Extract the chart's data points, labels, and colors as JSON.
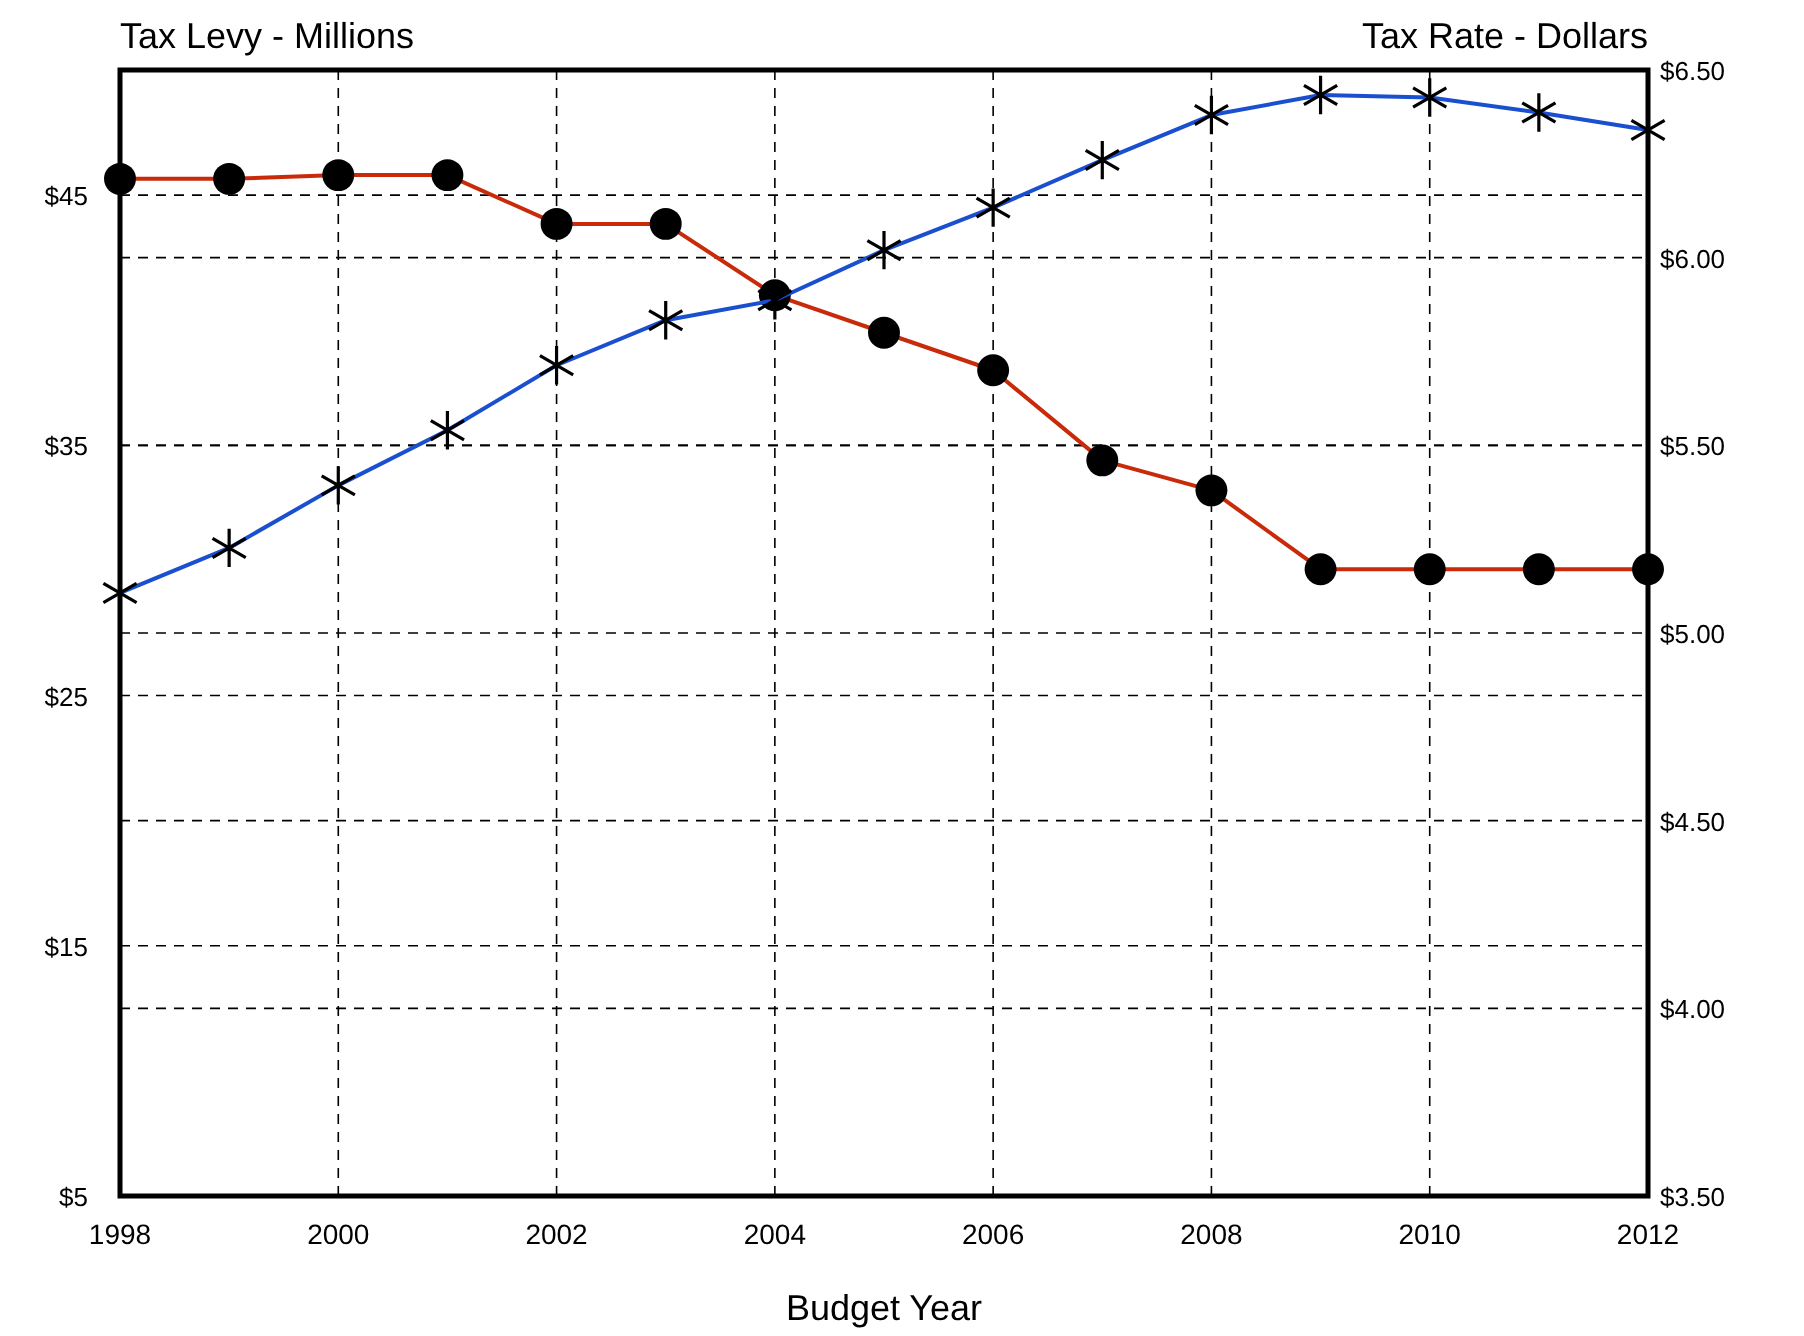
{
  "chart_data": {
    "type": "line",
    "xlabel": "Budget Year",
    "ylabel": "Tax Levy - Millions",
    "y2label": "Tax Rate - Dollars",
    "x": [
      1998,
      1999,
      2000,
      2001,
      2002,
      2003,
      2004,
      2005,
      2006,
      2007,
      2008,
      2009,
      2010,
      2011,
      2012
    ],
    "series": [
      {
        "color": "#1a4fd0",
        "marker": "cross",
        "values": [
          29.1,
          30.9,
          33.4,
          35.6,
          38.2,
          40.0,
          40.8,
          42.8,
          44.5,
          46.4,
          48.2,
          49.0,
          48.9,
          48.3,
          47.6
        ]
      },
      {
        "color": "#c82a0a",
        "marker": "circle",
        "axis": "y2",
        "values": [
          6.21,
          6.21,
          6.22,
          6.22,
          6.09,
          6.09,
          5.9,
          5.8,
          5.7,
          5.46,
          5.38,
          5.17,
          5.17,
          5.17,
          5.17
        ]
      }
    ],
    "xlim": [
      1998,
      2012
    ],
    "xticks": [
      1998,
      2000,
      2002,
      2004,
      2006,
      2008,
      2010,
      2012
    ],
    "ylim": [
      5,
      50
    ],
    "yticks": [
      {
        "value": 5,
        "label": "$5"
      },
      {
        "value": 15,
        "label": "$15"
      },
      {
        "value": 25,
        "label": "$25"
      },
      {
        "value": 35,
        "label": "$35"
      },
      {
        "value": 45,
        "label": "$45"
      }
    ],
    "y2lim": [
      3.5,
      6.5
    ],
    "y2ticks": [
      {
        "value": 3.5,
        "label": "$3.50"
      },
      {
        "value": 4,
        "label": "$4.00"
      },
      {
        "value": 4.5,
        "label": "$4.50"
      },
      {
        "value": 5,
        "label": "$5.00"
      },
      {
        "value": 5.5,
        "label": "$5.50"
      },
      {
        "value": 6,
        "label": "$6.00"
      },
      {
        "value": 6.5,
        "label": "$6.50"
      }
    ],
    "grid": true,
    "line_style": "solid"
  }
}
